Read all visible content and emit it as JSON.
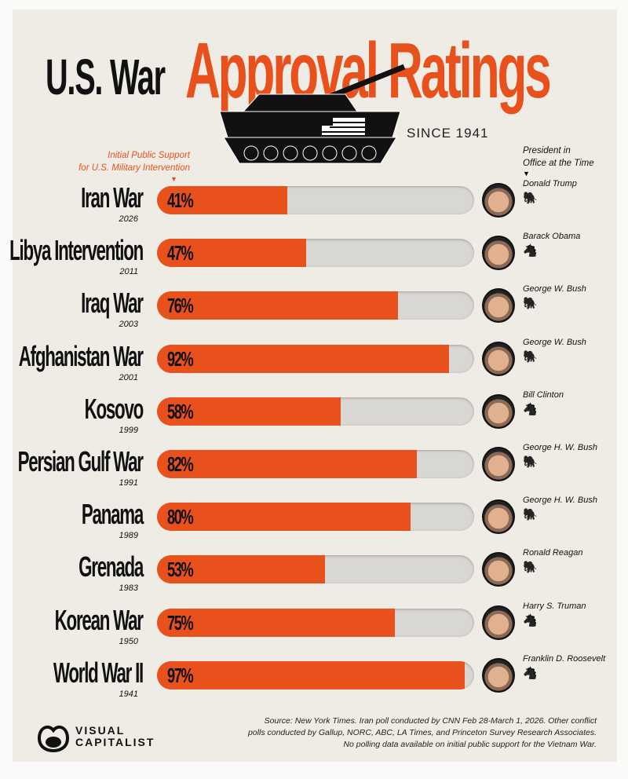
{
  "header": {
    "title_part1": "U.S. War",
    "title_part2": "Approval Ratings",
    "subtitle": "SINCE 1941"
  },
  "left_header": {
    "line1": "Initial Public Support",
    "line2": "for U.S. Military Intervention"
  },
  "right_header": {
    "line1": "President in",
    "line2": "Office at the Time"
  },
  "colors": {
    "bar": "#e8501c",
    "track": "#d9d7d3",
    "background": "#efece6"
  },
  "chart_data": {
    "type": "bar",
    "orientation": "horizontal",
    "xlim": [
      0,
      100
    ],
    "unit": "%",
    "categories": [
      "Iran War",
      "Libya Intervention",
      "Iraq War",
      "Afghanistan War",
      "Kosovo",
      "Persian Gulf War",
      "Panama",
      "Grenada",
      "Korean War",
      "World War II"
    ],
    "years": [
      "2026",
      "2011",
      "2003",
      "2001",
      "1999",
      "1991",
      "1989",
      "1983",
      "1950",
      "1941"
    ],
    "values": [
      41,
      47,
      76,
      92,
      58,
      82,
      80,
      53,
      75,
      97
    ],
    "labels": [
      "41%",
      "47%",
      "76%",
      "92%",
      "58%",
      "82%",
      "80%",
      "53%",
      "75%",
      "97%"
    ],
    "presidents": [
      "Donald Trump",
      "Barack Obama",
      "George W. Bush",
      "George W. Bush",
      "Bill Clinton",
      "George H. W. Bush",
      "George H. W. Bush",
      "Ronald Reagan",
      "Harry S. Truman",
      "Franklin D. Roosevelt"
    ],
    "parties": [
      "republican-elephant",
      "democrat-donkey",
      "republican-elephant",
      "republican-elephant",
      "democrat-donkey",
      "republican-elephant",
      "republican-elephant",
      "republican-elephant",
      "democrat-donkey",
      "democrat-donkey"
    ]
  },
  "footer": {
    "logo_line1": "VISUAL",
    "logo_line2": "CAPITALIST",
    "source_line1": "Source: New York Times. Iran poll conducted by CNN Feb 28-March 1, 2026. Other conflict",
    "source_line2": "polls conducted by Gallup, NORC, ABC, LA Times, and Princeton Survey Research Associates.",
    "source_line3": "No polling data available on initial public support for the Vietnam War."
  }
}
